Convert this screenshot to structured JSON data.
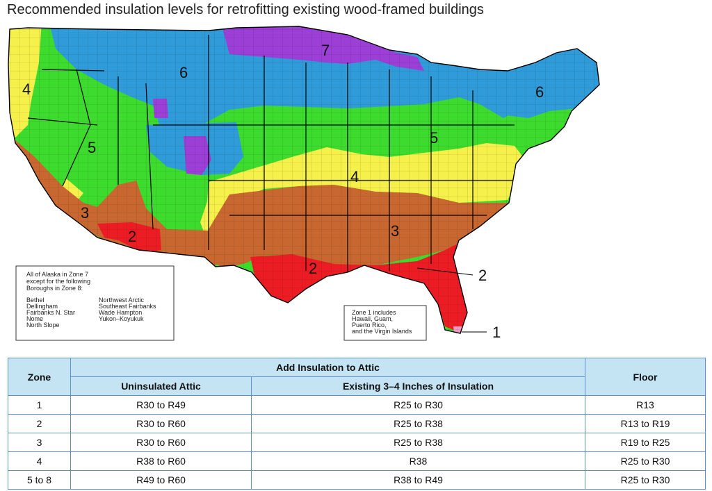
{
  "title": "Recommended insulation levels for retrofitting existing wood-framed buildings",
  "map": {
    "zone_labels": [
      "7",
      "6",
      "4",
      "5",
      "3",
      "2",
      "4",
      "5",
      "6",
      "3",
      "2"
    ],
    "callouts": [
      "2",
      "1"
    ],
    "alaska_note": {
      "lines": [
        "All of Alaska in Zone 7",
        "except for the following",
        "Boroughs in Zone 8:"
      ],
      "col1": [
        "Bethel",
        "Dellingham",
        "Fairbanks N. Star",
        "Nome",
        "North Slope"
      ],
      "col2": [
        "Northwest Arctic",
        "Southeast Fairbanks",
        "Wade Hampton",
        "Yukon–Koyukuk"
      ]
    },
    "zone1_note": [
      "Zone 1 includes",
      "Hawaii, Guam,",
      "Puerto Rico,",
      "and the Virgin Islands"
    ],
    "zone_colors": {
      "1": "#f39ac6",
      "2": "#ec1c24",
      "3": "#c8672f",
      "4": "#f5f04a",
      "5": "#3ddb2e",
      "6": "#2f9bd8",
      "7": "#9b3fd6"
    }
  },
  "table": {
    "header": {
      "zone": "Zone",
      "attic_group": "Add Insulation to Attic",
      "uninsulated": "Uninsulated Attic",
      "existing": "Existing 3–4 Inches of Insulation",
      "floor": "Floor"
    },
    "rows": [
      {
        "zone": "1",
        "uninsulated": "R30 to R49",
        "existing": "R25 to R30",
        "floor": "R13"
      },
      {
        "zone": "2",
        "uninsulated": "R30 to R60",
        "existing": "R25 to R38",
        "floor": "R13 to R19"
      },
      {
        "zone": "3",
        "uninsulated": "R30 to R60",
        "existing": "R25 to R38",
        "floor": "R19 to R25"
      },
      {
        "zone": "4",
        "uninsulated": "R38 to R60",
        "existing": "R38",
        "floor": "R25 to R30"
      },
      {
        "zone": "5 to 8",
        "uninsulated": "R49 to R60",
        "existing": "R38 to R49",
        "floor": "R25 to R30"
      }
    ]
  }
}
